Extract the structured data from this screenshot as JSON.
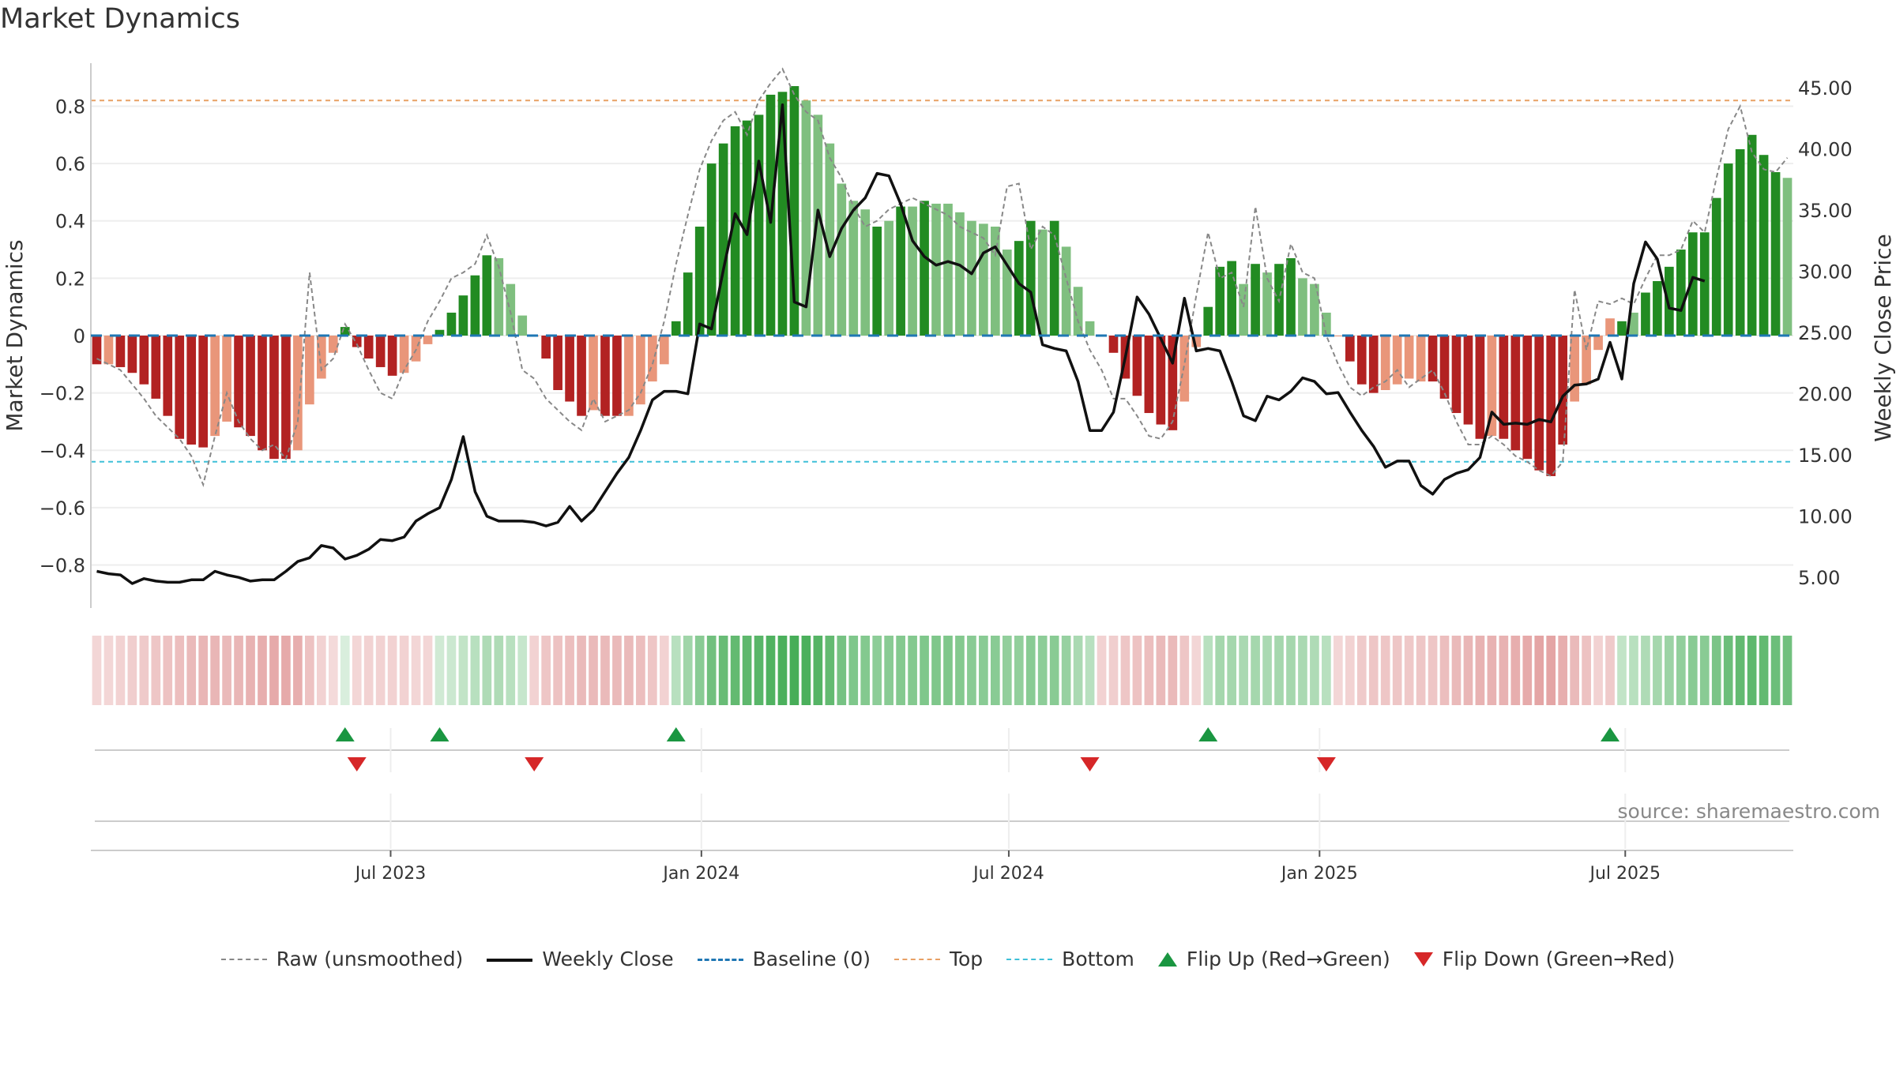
{
  "title": "Market Dynamics",
  "source": "source: sharemaestro.com",
  "legend": {
    "raw": "Raw (unsmoothed)",
    "close": "Weekly Close",
    "baseline": "Baseline (0)",
    "top": "Top",
    "bottom": "Bottom",
    "flip_up": "Flip Up (Red→Green)",
    "flip_down": "Flip Down (Green→Red)"
  },
  "colors": {
    "strong_green": "#228b22",
    "light_green": "#7fbf7f",
    "strong_red": "#b22222",
    "light_red": "#e9967a",
    "raw": "#888888",
    "close": "#111111",
    "baseline": "#1f77b4",
    "top": "#e8a064",
    "bottom": "#3fc0d8",
    "flip_up": "#1a9641",
    "flip_down": "#d62728"
  },
  "chart_data": {
    "type": "bar",
    "x_start": "2023-01-08",
    "x_step_days": 7,
    "x_ticks": [
      "Jul 2023",
      "Jan 2024",
      "Jul 2024",
      "Jan 2025",
      "Jul 2025"
    ],
    "x_tick_dates": [
      "2023-07-01",
      "2024-01-01",
      "2024-07-01",
      "2025-01-01",
      "2025-07-01"
    ],
    "y_left_label": "Market Dynamics",
    "y_left_range": [
      -0.95,
      0.95
    ],
    "y_left_ticks": [
      0.8,
      0.6,
      0.4,
      0.2,
      0,
      -0.2,
      -0.4,
      -0.6,
      -0.8
    ],
    "y_left_tick_labels": [
      "0.8",
      "0.6",
      "0.4",
      "0.2",
      "0",
      "−0.2",
      "−0.4",
      "−0.6",
      "−0.8"
    ],
    "y_right_label": "Weekly Close Price",
    "y_right_range": [
      2.5,
      47.0
    ],
    "y_right_ticks": [
      45,
      40,
      35,
      30,
      25,
      20,
      15,
      10,
      5
    ],
    "y_right_tick_labels": [
      "45.00",
      "40.00",
      "35.00",
      "30.00",
      "25.00",
      "20.00",
      "15.00",
      "10.00",
      "5.00"
    ],
    "top_level": 0.82,
    "bottom_level": -0.44,
    "baseline": 0,
    "smoothed": [
      -0.1,
      -0.1,
      -0.11,
      -0.13,
      -0.17,
      -0.22,
      -0.28,
      -0.36,
      -0.38,
      -0.39,
      -0.35,
      -0.3,
      -0.32,
      -0.35,
      -0.4,
      -0.43,
      -0.43,
      -0.4,
      -0.24,
      -0.15,
      -0.06,
      0.03,
      -0.04,
      -0.08,
      -0.11,
      -0.14,
      -0.13,
      -0.09,
      -0.03,
      0.02,
      0.08,
      0.14,
      0.21,
      0.28,
      0.27,
      0.18,
      0.07,
      0.0,
      -0.08,
      -0.19,
      -0.23,
      -0.28,
      -0.26,
      -0.28,
      -0.28,
      -0.28,
      -0.24,
      -0.16,
      -0.1,
      0.05,
      0.22,
      0.38,
      0.6,
      0.67,
      0.73,
      0.75,
      0.77,
      0.84,
      0.85,
      0.87,
      0.82,
      0.77,
      0.67,
      0.53,
      0.47,
      0.44,
      0.38,
      0.4,
      0.45,
      0.45,
      0.47,
      0.46,
      0.46,
      0.43,
      0.4,
      0.39,
      0.38,
      0.3,
      0.33,
      0.4,
      0.37,
      0.4,
      0.31,
      0.17,
      0.05,
      0.0,
      -0.06,
      -0.15,
      -0.21,
      -0.27,
      -0.31,
      -0.33,
      -0.23,
      -0.04,
      0.1,
      0.24,
      0.26,
      0.18,
      0.25,
      0.22,
      0.25,
      0.27,
      0.2,
      0.18,
      0.08,
      0.0,
      -0.09,
      -0.17,
      -0.2,
      -0.19,
      -0.17,
      -0.15,
      -0.16,
      -0.16,
      -0.22,
      -0.27,
      -0.31,
      -0.36,
      -0.35,
      -0.36,
      -0.4,
      -0.43,
      -0.47,
      -0.49,
      -0.38,
      -0.23,
      -0.17,
      -0.05,
      0.06,
      0.05,
      0.08,
      0.15,
      0.19,
      0.24,
      0.3,
      0.36,
      0.36,
      0.48,
      0.6,
      0.65,
      0.7,
      0.63,
      0.57,
      0.55
    ],
    "raw": [
      -0.08,
      -0.1,
      -0.12,
      -0.17,
      -0.22,
      -0.28,
      -0.32,
      -0.36,
      -0.42,
      -0.52,
      -0.35,
      -0.2,
      -0.3,
      -0.36,
      -0.4,
      -0.38,
      -0.43,
      -0.3,
      0.22,
      -0.12,
      -0.08,
      0.04,
      -0.03,
      -0.12,
      -0.2,
      -0.22,
      -0.12,
      -0.05,
      0.05,
      0.12,
      0.2,
      0.22,
      0.25,
      0.35,
      0.24,
      0.08,
      -0.12,
      -0.15,
      -0.22,
      -0.26,
      -0.3,
      -0.33,
      -0.22,
      -0.3,
      -0.28,
      -0.26,
      -0.2,
      -0.1,
      0.05,
      0.25,
      0.42,
      0.58,
      0.68,
      0.75,
      0.78,
      0.7,
      0.82,
      0.88,
      0.93,
      0.84,
      0.78,
      0.75,
      0.62,
      0.55,
      0.45,
      0.38,
      0.4,
      0.44,
      0.46,
      0.48,
      0.46,
      0.44,
      0.42,
      0.38,
      0.36,
      0.34,
      0.28,
      0.52,
      0.53,
      0.3,
      0.38,
      0.35,
      0.2,
      0.05,
      -0.05,
      -0.12,
      -0.22,
      -0.22,
      -0.28,
      -0.35,
      -0.36,
      -0.3,
      -0.1,
      0.14,
      0.36,
      0.2,
      0.22,
      0.1,
      0.45,
      0.2,
      0.12,
      0.32,
      0.22,
      0.2,
      0.0,
      -0.1,
      -0.18,
      -0.21,
      -0.18,
      -0.16,
      -0.12,
      -0.18,
      -0.15,
      -0.12,
      -0.2,
      -0.3,
      -0.38,
      -0.38,
      -0.35,
      -0.38,
      -0.42,
      -0.44,
      -0.47,
      -0.49,
      -0.44,
      0.16,
      -0.05,
      0.12,
      0.11,
      0.13,
      0.11,
      0.2,
      0.28,
      0.28,
      0.3,
      0.4,
      0.36,
      0.55,
      0.72,
      0.8,
      0.64,
      0.58,
      0.57,
      0.62
    ],
    "close": [
      5.5,
      5.3,
      5.2,
      4.5,
      4.9,
      4.7,
      4.6,
      4.6,
      4.8,
      4.8,
      5.5,
      5.2,
      5.0,
      4.7,
      4.8,
      4.8,
      5.5,
      6.3,
      6.6,
      7.6,
      7.4,
      6.5,
      6.8,
      7.3,
      8.1,
      8.0,
      8.3,
      9.6,
      10.2,
      10.7,
      13.0,
      16.5,
      12.0,
      10.0,
      9.6,
      9.6,
      9.6,
      9.5,
      9.2,
      9.5,
      10.8,
      9.6,
      10.5,
      12.0,
      13.5,
      14.8,
      17.0,
      19.5,
      20.2,
      20.2,
      20.0,
      25.7,
      25.3,
      30.1,
      34.7,
      33.0,
      39.0,
      34.0,
      43.6,
      27.5,
      27.1,
      35.0,
      31.2,
      33.5,
      35.0,
      36.0,
      38.0,
      37.8,
      35.5,
      32.5,
      31.2,
      30.5,
      30.8,
      30.5,
      29.8,
      31.5,
      32.0,
      30.5,
      29.0,
      28.3,
      24.0,
      23.7,
      23.5,
      21.0,
      17.0,
      17.0,
      18.5,
      23.0,
      27.9,
      26.5,
      24.5,
      22.5,
      27.8,
      23.5,
      23.7,
      23.5,
      21.0,
      18.2,
      17.8,
      19.8,
      19.5,
      20.2,
      21.3,
      21.0,
      20.0,
      20.1,
      18.5,
      17.0,
      15.7,
      14.0,
      14.5,
      14.5,
      12.5,
      11.8,
      13.0,
      13.5,
      13.8,
      14.8,
      18.5,
      17.5,
      17.6,
      17.5,
      17.9,
      17.7,
      19.8,
      20.7,
      20.8,
      21.2,
      24.2,
      21.2,
      29.0,
      32.4,
      31.0,
      27.0,
      26.8,
      29.5,
      29.2
    ],
    "color_class": [
      "SR",
      "LR",
      "SR",
      "SR",
      "SR",
      "SR",
      "SR",
      "SR",
      "SR",
      "SR",
      "LR",
      "LR",
      "SR",
      "SR",
      "SR",
      "SR",
      "SR",
      "LR",
      "LR",
      "LR",
      "LR",
      "SG",
      "SR",
      "SR",
      "SR",
      "SR",
      "LR",
      "LR",
      "LR",
      "SG",
      "SG",
      "SG",
      "SG",
      "SG",
      "LG",
      "LG",
      "LG",
      "LR",
      "SR",
      "SR",
      "SR",
      "SR",
      "LR",
      "SR",
      "SR",
      "LR",
      "LR",
      "LR",
      "LR",
      "SG",
      "SG",
      "SG",
      "SG",
      "SG",
      "SG",
      "SG",
      "SG",
      "SG",
      "SG",
      "SG",
      "LG",
      "LG",
      "LG",
      "LG",
      "LG",
      "LG",
      "SG",
      "LG",
      "SG",
      "LG",
      "SG",
      "LG",
      "LG",
      "LG",
      "LG",
      "LG",
      "LG",
      "LG",
      "SG",
      "SG",
      "LG",
      "SG",
      "LG",
      "LG",
      "LG",
      "LR",
      "SR",
      "SR",
      "SR",
      "SR",
      "SR",
      "SR",
      "LR",
      "LR",
      "SG",
      "SG",
      "SG",
      "LG",
      "SG",
      "LG",
      "SG",
      "SG",
      "LG",
      "LG",
      "LG",
      "LR",
      "SR",
      "SR",
      "SR",
      "LR",
      "LR",
      "LR",
      "LR",
      "SR",
      "SR",
      "SR",
      "SR",
      "SR",
      "LR",
      "SR",
      "SR",
      "SR",
      "SR",
      "SR",
      "SR",
      "LR",
      "LR",
      "LR",
      "LR",
      "SG",
      "LG",
      "SG",
      "SG",
      "SG",
      "SG",
      "SG",
      "SG",
      "SG",
      "SG",
      "SG",
      "SG",
      "SG",
      "SG",
      "LG",
      "LG",
      "LG"
    ],
    "strip_intensity": [
      0.2,
      0.2,
      0.22,
      0.24,
      0.26,
      0.28,
      0.3,
      0.32,
      0.34,
      0.36,
      0.36,
      0.34,
      0.36,
      0.38,
      0.4,
      0.42,
      0.42,
      0.4,
      0.3,
      0.22,
      0.18,
      0.16,
      0.2,
      0.22,
      0.22,
      0.22,
      0.22,
      0.2,
      0.2,
      0.2,
      0.22,
      0.26,
      0.3,
      0.34,
      0.34,
      0.3,
      0.24,
      0.22,
      0.28,
      0.3,
      0.32,
      0.34,
      0.34,
      0.34,
      0.34,
      0.34,
      0.32,
      0.28,
      0.22,
      0.3,
      0.4,
      0.5,
      0.6,
      0.64,
      0.66,
      0.68,
      0.7,
      0.74,
      0.76,
      0.78,
      0.76,
      0.72,
      0.66,
      0.58,
      0.54,
      0.52,
      0.48,
      0.5,
      0.52,
      0.52,
      0.54,
      0.54,
      0.54,
      0.52,
      0.5,
      0.5,
      0.5,
      0.46,
      0.46,
      0.5,
      0.48,
      0.5,
      0.44,
      0.36,
      0.3,
      0.22,
      0.24,
      0.28,
      0.3,
      0.32,
      0.34,
      0.34,
      0.28,
      0.2,
      0.3,
      0.38,
      0.38,
      0.36,
      0.38,
      0.36,
      0.38,
      0.38,
      0.36,
      0.34,
      0.3,
      0.2,
      0.22,
      0.26,
      0.28,
      0.28,
      0.28,
      0.27,
      0.28,
      0.28,
      0.32,
      0.34,
      0.36,
      0.38,
      0.38,
      0.38,
      0.4,
      0.42,
      0.44,
      0.44,
      0.4,
      0.34,
      0.3,
      0.22,
      0.26,
      0.26,
      0.3,
      0.34,
      0.38,
      0.42,
      0.46,
      0.5,
      0.5,
      0.56,
      0.62,
      0.66,
      0.68,
      0.66,
      0.62,
      0.6
    ],
    "flip_up_idx": [
      21,
      29,
      49,
      94,
      128
    ],
    "flip_down_idx": [
      22,
      37,
      84,
      104
    ]
  }
}
